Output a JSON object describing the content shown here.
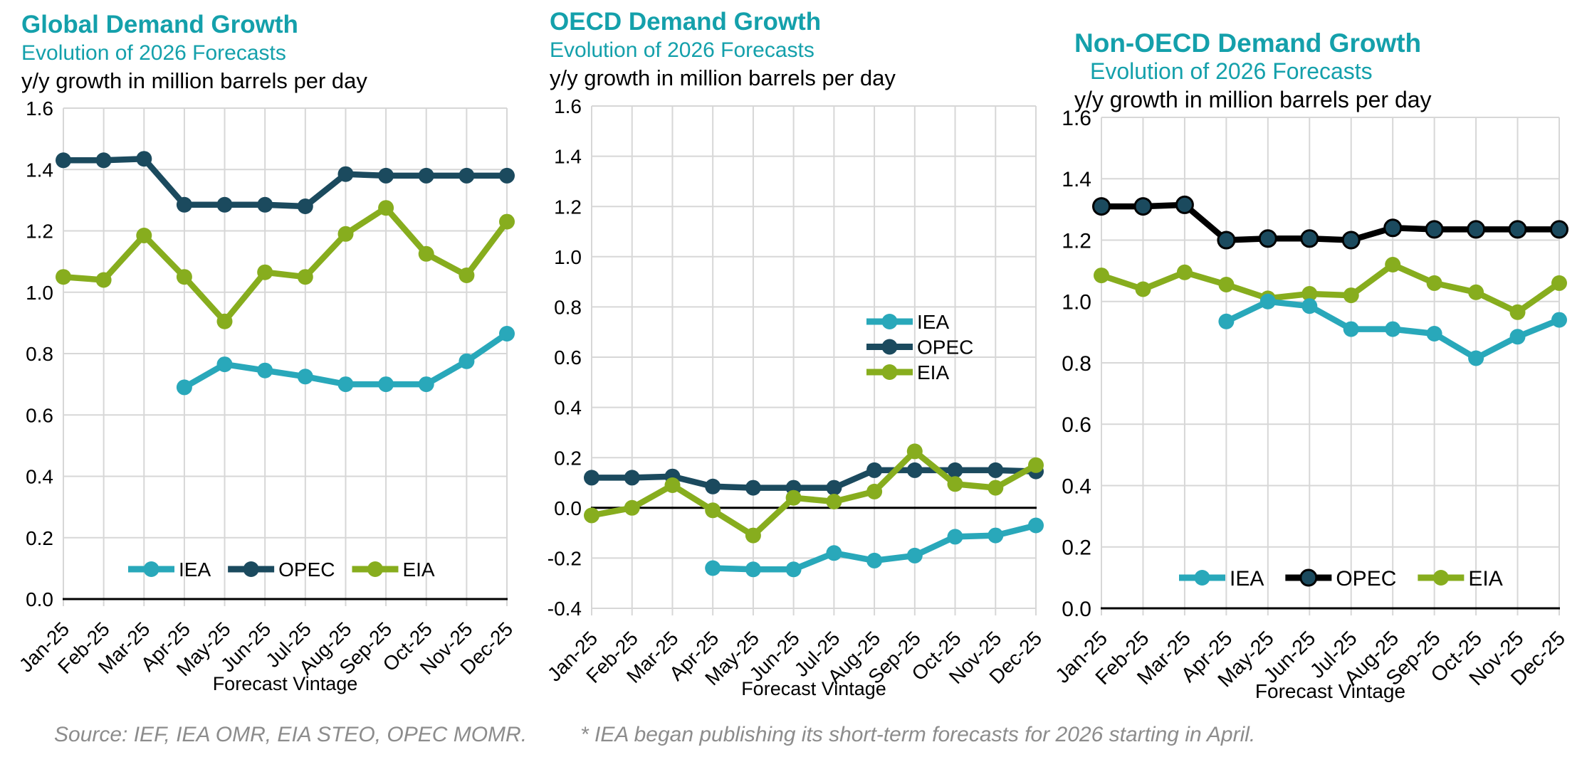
{
  "page": {
    "colors": {
      "heading_teal": "#14A0AB",
      "note_gray": "#8C8C8C",
      "gridline_gray": "#D7D7D7",
      "axis_black": "#000000",
      "iea_teal": "#29A8BA",
      "opec_navy": "#1B4A5E",
      "eia_green": "#87AD1E"
    },
    "source_note": "Source: IEF, IEA OMR, EIA STEO, OPEC MOMR.",
    "footnote": "* IEA began publishing its short-term forecasts for 2026 starting in April."
  },
  "chart_data": [
    {
      "type": "line",
      "title": "Global Demand Growth",
      "subtitle": "Evolution of 2026 Forecasts",
      "unit_label": "y/y growth in million barrels per day",
      "xlabel": "Forecast Vintage",
      "x": [
        "Jan-25",
        "Feb-25",
        "Mar-25",
        "Apr-25",
        "May-25",
        "Jun-25",
        "Jul-25",
        "Aug-25",
        "Sep-25",
        "Oct-25",
        "Nov-25",
        "Dec-25"
      ],
      "ylim": [
        0,
        1.6
      ],
      "ytick_step": 0.2,
      "grid": true,
      "legend_position": "inside-bottom-horizontal",
      "series": [
        {
          "name": "IEA",
          "color": "#29A8BA",
          "values": [
            null,
            null,
            null,
            0.69,
            0.765,
            0.745,
            0.725,
            0.7,
            0.7,
            0.7,
            0.775,
            0.865
          ]
        },
        {
          "name": "OPEC",
          "color": "#1B4A5E",
          "values": [
            1.43,
            1.43,
            1.435,
            1.285,
            1.285,
            1.285,
            1.28,
            1.385,
            1.38,
            1.38,
            1.38,
            1.38
          ]
        },
        {
          "name": "EIA",
          "color": "#87AD1E",
          "values": [
            1.05,
            1.04,
            1.185,
            1.05,
            0.905,
            1.065,
            1.05,
            1.19,
            1.275,
            1.125,
            1.055,
            1.23
          ]
        }
      ]
    },
    {
      "type": "line",
      "title": "OECD Demand Growth",
      "subtitle": "Evolution of 2026 Forecasts",
      "unit_label": "y/y growth in million barrels per day",
      "xlabel": "Forecast Vintage",
      "x": [
        "Jan-25",
        "Feb-25",
        "Mar-25",
        "Apr-25",
        "May-25",
        "Jun-25",
        "Jul-25",
        "Aug-25",
        "Sep-25",
        "Oct-25",
        "Nov-25",
        "Dec-25"
      ],
      "ylim": [
        -0.4,
        1.6
      ],
      "ytick_step": 0.2,
      "grid": true,
      "legend_position": "inside-right-vertical",
      "series": [
        {
          "name": "IEA",
          "color": "#29A8BA",
          "values": [
            null,
            null,
            null,
            -0.24,
            -0.245,
            -0.245,
            -0.18,
            -0.21,
            -0.19,
            -0.115,
            -0.11,
            -0.07
          ]
        },
        {
          "name": "OPEC",
          "color": "#1B4A5E",
          "values": [
            0.12,
            0.12,
            0.125,
            0.085,
            0.08,
            0.08,
            0.08,
            0.15,
            0.15,
            0.15,
            0.15,
            0.145
          ]
        },
        {
          "name": "EIA",
          "color": "#87AD1E",
          "values": [
            -0.03,
            0.0,
            0.09,
            -0.01,
            -0.11,
            0.04,
            0.025,
            0.065,
            0.225,
            0.095,
            0.08,
            0.17
          ]
        }
      ]
    },
    {
      "type": "line",
      "title": "Non-OECD Demand Growth",
      "subtitle": "Evolution of 2026 Forecasts",
      "unit_label": "y/y growth in million barrels per day",
      "xlabel": "Forecast Vintage",
      "x": [
        "Jan-25",
        "Feb-25",
        "Mar-25",
        "Apr-25",
        "May-25",
        "Jun-25",
        "Jul-25",
        "Aug-25",
        "Sep-25",
        "Oct-25",
        "Nov-25",
        "Dec-25"
      ],
      "ylim": [
        0,
        1.6
      ],
      "ytick_step": 0.2,
      "grid": true,
      "legend_position": "inside-bottom-horizontal",
      "series": [
        {
          "name": "IEA",
          "color": "#29A8BA",
          "values": [
            null,
            null,
            null,
            0.935,
            1.0,
            0.985,
            0.91,
            0.91,
            0.895,
            0.815,
            0.885,
            0.94
          ]
        },
        {
          "name": "OPEC",
          "color": "#1B4A5E",
          "line_color": "#000000",
          "marker_border": "#000000",
          "values": [
            1.31,
            1.31,
            1.315,
            1.2,
            1.205,
            1.205,
            1.2,
            1.24,
            1.235,
            1.235,
            1.235,
            1.235
          ]
        },
        {
          "name": "EIA",
          "color": "#87AD1E",
          "values": [
            1.085,
            1.04,
            1.095,
            1.055,
            1.01,
            1.025,
            1.02,
            1.12,
            1.06,
            1.03,
            0.965,
            1.06
          ]
        }
      ]
    }
  ]
}
